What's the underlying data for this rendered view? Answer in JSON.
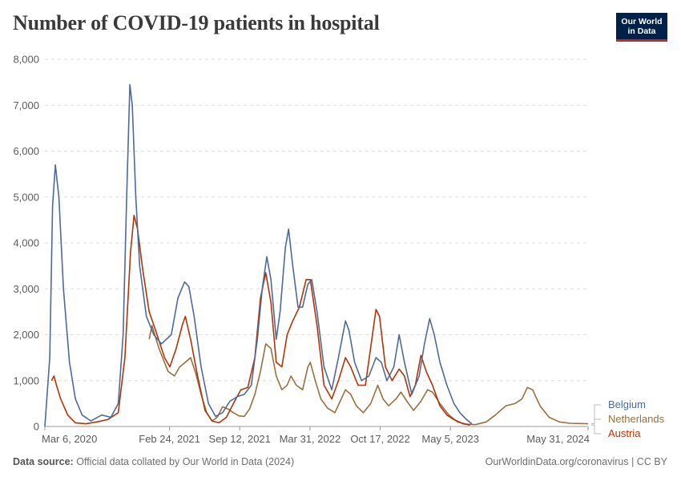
{
  "header": {
    "title": "Number of COVID-19 patients in hospital",
    "logo_line1": "Our World",
    "logo_line2": "in Data"
  },
  "footer": {
    "source_label": "Data source:",
    "source_text": "Official data collated by Our World in Data (2024)",
    "credit": "OurWorldinData.org/coronavirus | CC BY"
  },
  "chart_data": {
    "type": "line",
    "title": "Number of COVID-19 patients in hospital",
    "xlabel": "",
    "ylabel": "",
    "x_range": [
      "2020-03-06",
      "2024-05-31"
    ],
    "ylim": [
      0,
      8000
    ],
    "y_ticks": [
      0,
      1000,
      2000,
      3000,
      4000,
      5000,
      6000,
      7000,
      8000
    ],
    "y_tick_labels": [
      "0",
      "1,000",
      "2,000",
      "3,000",
      "4,000",
      "5,000",
      "6,000",
      "7,000",
      "8,000"
    ],
    "x_ticks": [
      "2020-03-06",
      "2021-02-24",
      "2021-09-12",
      "2022-03-31",
      "2022-10-17",
      "2023-05-05",
      "2024-05-31"
    ],
    "x_tick_labels": [
      "Mar 6, 2020",
      "Feb 24, 2021",
      "Sep 12, 2021",
      "Mar 31, 2022",
      "Oct 17, 2022",
      "May 5, 2023",
      "May 31, 2024"
    ],
    "grid": true,
    "legend": "right",
    "series": [
      {
        "name": "Belgium",
        "color": "#4c6a9c",
        "points": [
          [
            "2020-03-06",
            0
          ],
          [
            "2020-03-20",
            1500
          ],
          [
            "2020-03-28",
            4800
          ],
          [
            "2020-04-05",
            5700
          ],
          [
            "2020-04-15",
            5000
          ],
          [
            "2020-04-28",
            3000
          ],
          [
            "2020-05-15",
            1400
          ],
          [
            "2020-06-01",
            600
          ],
          [
            "2020-06-20",
            250
          ],
          [
            "2020-07-15",
            120
          ],
          [
            "2020-08-15",
            250
          ],
          [
            "2020-09-10",
            200
          ],
          [
            "2020-10-01",
            500
          ],
          [
            "2020-10-15",
            2000
          ],
          [
            "2020-10-25",
            5000
          ],
          [
            "2020-11-03",
            7450
          ],
          [
            "2020-11-10",
            7000
          ],
          [
            "2020-11-20",
            5000
          ],
          [
            "2020-12-01",
            3500
          ],
          [
            "2020-12-20",
            2400
          ],
          [
            "2021-01-10",
            2000
          ],
          [
            "2021-02-01",
            1800
          ],
          [
            "2021-03-01",
            2000
          ],
          [
            "2021-03-20",
            2800
          ],
          [
            "2021-04-08",
            3150
          ],
          [
            "2021-04-20",
            3050
          ],
          [
            "2021-05-05",
            2400
          ],
          [
            "2021-05-25",
            1300
          ],
          [
            "2021-06-15",
            500
          ],
          [
            "2021-07-05",
            220
          ],
          [
            "2021-07-25",
            300
          ],
          [
            "2021-08-15",
            550
          ],
          [
            "2021-09-05",
            650
          ],
          [
            "2021-09-25",
            700
          ],
          [
            "2021-10-15",
            900
          ],
          [
            "2021-11-01",
            1900
          ],
          [
            "2021-11-15",
            3000
          ],
          [
            "2021-11-28",
            3700
          ],
          [
            "2021-12-10",
            3200
          ],
          [
            "2021-12-25",
            1900
          ],
          [
            "2022-01-05",
            2500
          ],
          [
            "2022-01-20",
            3900
          ],
          [
            "2022-01-29",
            4300
          ],
          [
            "2022-02-10",
            3500
          ],
          [
            "2022-02-25",
            2600
          ],
          [
            "2022-03-10",
            2600
          ],
          [
            "2022-03-25",
            3100
          ],
          [
            "2022-04-05",
            3200
          ],
          [
            "2022-04-20",
            2500
          ],
          [
            "2022-05-10",
            1300
          ],
          [
            "2022-06-01",
            800
          ],
          [
            "2022-06-20",
            1500
          ],
          [
            "2022-07-10",
            2300
          ],
          [
            "2022-07-20",
            2100
          ],
          [
            "2022-08-05",
            1400
          ],
          [
            "2022-08-25",
            1000
          ],
          [
            "2022-09-15",
            1100
          ],
          [
            "2022-10-05",
            1500
          ],
          [
            "2022-10-20",
            1400
          ],
          [
            "2022-11-05",
            1000
          ],
          [
            "2022-11-25",
            1300
          ],
          [
            "2022-12-10",
            2000
          ],
          [
            "2022-12-25",
            1400
          ],
          [
            "2023-01-15",
            700
          ],
          [
            "2023-02-05",
            1100
          ],
          [
            "2023-02-20",
            1800
          ],
          [
            "2023-03-07",
            2350
          ],
          [
            "2023-03-20",
            2000
          ],
          [
            "2023-04-05",
            1400
          ],
          [
            "2023-04-25",
            900
          ],
          [
            "2023-05-15",
            500
          ],
          [
            "2023-06-01",
            300
          ],
          [
            "2023-06-20",
            150
          ],
          [
            "2023-07-05",
            60
          ]
        ]
      },
      {
        "name": "Netherlands",
        "color": "#9a6f3d",
        "points": [
          [
            "2020-12-28",
            1900
          ],
          [
            "2021-01-05",
            2200
          ],
          [
            "2021-01-25",
            1700
          ],
          [
            "2021-02-20",
            1200
          ],
          [
            "2021-03-10",
            1100
          ],
          [
            "2021-03-25",
            1300
          ],
          [
            "2021-04-10",
            1400
          ],
          [
            "2021-04-25",
            1500
          ],
          [
            "2021-05-10",
            1150
          ],
          [
            "2021-05-25",
            700
          ],
          [
            "2021-06-10",
            300
          ],
          [
            "2021-06-25",
            120
          ],
          [
            "2021-07-10",
            200
          ],
          [
            "2021-07-25",
            430
          ],
          [
            "2021-08-10",
            380
          ],
          [
            "2021-08-25",
            300
          ],
          [
            "2021-09-10",
            230
          ],
          [
            "2021-09-25",
            220
          ],
          [
            "2021-10-10",
            380
          ],
          [
            "2021-10-25",
            700
          ],
          [
            "2021-11-10",
            1200
          ],
          [
            "2021-11-25",
            1800
          ],
          [
            "2021-12-10",
            1700
          ],
          [
            "2021-12-25",
            1100
          ],
          [
            "2022-01-10",
            800
          ],
          [
            "2022-01-25",
            900
          ],
          [
            "2022-02-05",
            1100
          ],
          [
            "2022-02-20",
            900
          ],
          [
            "2022-03-10",
            800
          ],
          [
            "2022-03-25",
            1300
          ],
          [
            "2022-04-01",
            1400
          ],
          [
            "2022-04-15",
            1000
          ],
          [
            "2022-05-01",
            600
          ],
          [
            "2022-05-20",
            400
          ],
          [
            "2022-06-10",
            300
          ],
          [
            "2022-06-25",
            550
          ],
          [
            "2022-07-10",
            800
          ],
          [
            "2022-07-25",
            700
          ],
          [
            "2022-08-10",
            450
          ],
          [
            "2022-08-30",
            300
          ],
          [
            "2022-09-20",
            500
          ],
          [
            "2022-10-10",
            900
          ],
          [
            "2022-10-25",
            600
          ],
          [
            "2022-11-10",
            450
          ],
          [
            "2022-12-01",
            600
          ],
          [
            "2022-12-15",
            750
          ],
          [
            "2023-01-01",
            550
          ],
          [
            "2023-01-20",
            350
          ],
          [
            "2023-02-10",
            550
          ],
          [
            "2023-03-01",
            800
          ],
          [
            "2023-03-15",
            750
          ],
          [
            "2023-04-05",
            500
          ],
          [
            "2023-05-01",
            250
          ],
          [
            "2023-05-25",
            100
          ],
          [
            "2023-06-20",
            50
          ],
          [
            "2023-07-15",
            40
          ],
          [
            "2023-08-15",
            100
          ],
          [
            "2023-09-10",
            250
          ],
          [
            "2023-10-10",
            450
          ],
          [
            "2023-11-05",
            500
          ],
          [
            "2023-11-25",
            600
          ],
          [
            "2023-12-10",
            850
          ],
          [
            "2023-12-25",
            800
          ],
          [
            "2024-01-15",
            450
          ],
          [
            "2024-02-10",
            200
          ],
          [
            "2024-03-10",
            100
          ],
          [
            "2024-04-10",
            70
          ],
          [
            "2024-05-31",
            60
          ]
        ]
      },
      {
        "name": "Austria",
        "color": "#b13507",
        "points": [
          [
            "2020-03-25",
            1000
          ],
          [
            "2020-04-01",
            1100
          ],
          [
            "2020-04-08",
            900
          ],
          [
            "2020-04-20",
            600
          ],
          [
            "2020-05-10",
            250
          ],
          [
            "2020-06-01",
            80
          ],
          [
            "2020-07-01",
            60
          ],
          [
            "2020-08-01",
            100
          ],
          [
            "2020-09-01",
            150
          ],
          [
            "2020-10-01",
            300
          ],
          [
            "2020-10-20",
            1500
          ],
          [
            "2020-11-05",
            3800
          ],
          [
            "2020-11-15",
            4600
          ],
          [
            "2020-11-25",
            4300
          ],
          [
            "2020-12-10",
            3400
          ],
          [
            "2020-12-28",
            2500
          ],
          [
            "2021-01-15",
            2100
          ],
          [
            "2021-02-10",
            1500
          ],
          [
            "2021-02-25",
            1300
          ],
          [
            "2021-03-15",
            1700
          ],
          [
            "2021-04-01",
            2200
          ],
          [
            "2021-04-10",
            2400
          ],
          [
            "2021-04-25",
            1900
          ],
          [
            "2021-05-15",
            1100
          ],
          [
            "2021-06-05",
            350
          ],
          [
            "2021-06-25",
            120
          ],
          [
            "2021-07-15",
            80
          ],
          [
            "2021-08-05",
            200
          ],
          [
            "2021-08-25",
            500
          ],
          [
            "2021-09-15",
            800
          ],
          [
            "2021-10-05",
            850
          ],
          [
            "2021-10-25",
            1500
          ],
          [
            "2021-11-10",
            2800
          ],
          [
            "2021-11-25",
            3350
          ],
          [
            "2021-12-10",
            2700
          ],
          [
            "2021-12-25",
            1400
          ],
          [
            "2022-01-10",
            1300
          ],
          [
            "2022-01-25",
            2000
          ],
          [
            "2022-02-10",
            2300
          ],
          [
            "2022-03-01",
            2600
          ],
          [
            "2022-03-20",
            3200
          ],
          [
            "2022-04-01",
            3200
          ],
          [
            "2022-04-20",
            2200
          ],
          [
            "2022-05-10",
            900
          ],
          [
            "2022-06-01",
            600
          ],
          [
            "2022-06-20",
            1000
          ],
          [
            "2022-07-10",
            1500
          ],
          [
            "2022-07-25",
            1300
          ],
          [
            "2022-08-15",
            900
          ],
          [
            "2022-09-05",
            900
          ],
          [
            "2022-09-25",
            2000
          ],
          [
            "2022-10-05",
            2550
          ],
          [
            "2022-10-15",
            2400
          ],
          [
            "2022-11-01",
            1300
          ],
          [
            "2022-11-20",
            1000
          ],
          [
            "2022-12-10",
            1250
          ],
          [
            "2022-12-25",
            1100
          ],
          [
            "2023-01-10",
            650
          ],
          [
            "2023-01-25",
            900
          ],
          [
            "2023-02-10",
            1550
          ],
          [
            "2023-02-25",
            1200
          ],
          [
            "2023-03-15",
            900
          ],
          [
            "2023-04-05",
            450
          ],
          [
            "2023-04-25",
            250
          ],
          [
            "2023-05-15",
            150
          ],
          [
            "2023-06-10",
            60
          ],
          [
            "2023-06-30",
            30
          ]
        ]
      }
    ]
  }
}
